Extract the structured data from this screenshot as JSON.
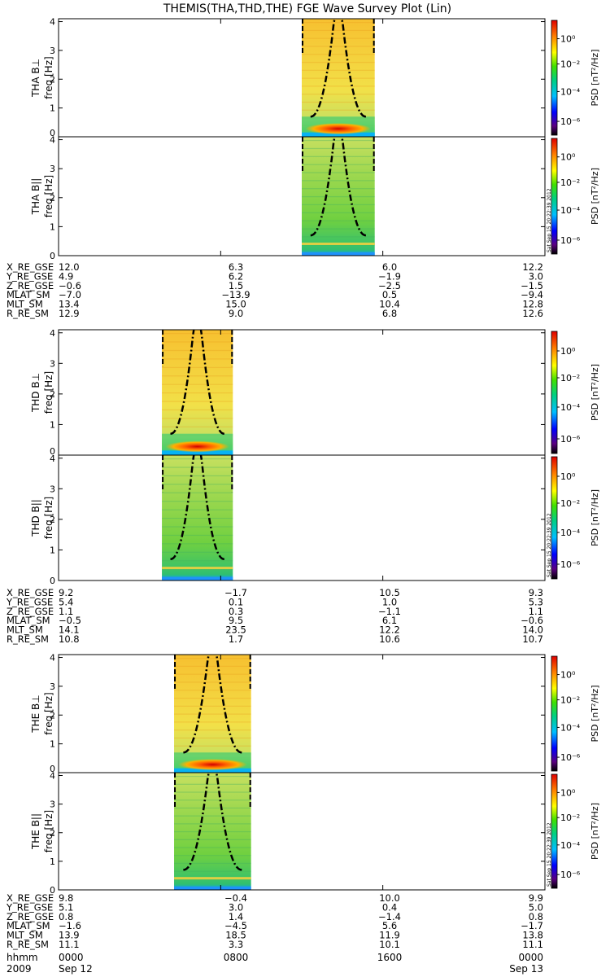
{
  "chart_data": {
    "type": "heatmap",
    "title": "THEMIS(THA,THD,THE) FGE Wave Survey Plot (Lin)",
    "colorbar": {
      "label": "PSD [nT²/Hz]",
      "ticks": [
        "10⁰",
        "10⁻²",
        "10⁻⁴",
        "10⁻⁶"
      ],
      "stamp": "Sat Sep 15 20:22:39 2012"
    },
    "y_ticks": [
      "0",
      "1",
      "2",
      "3",
      "4"
    ],
    "ylim": [
      0,
      4.1
    ],
    "x_labels": [
      "hhmm",
      "2009"
    ],
    "x_time_ticks": [
      "0000",
      "0800",
      "1600",
      "0000"
    ],
    "x_date_ticks": [
      "Sep 12",
      "",
      "",
      "Sep 13"
    ],
    "probes": [
      {
        "panels": [
          {
            "label": "THA B⊥",
            "ylabel": "freq [Hz]"
          },
          {
            "label": "THA B||",
            "ylabel": "freq [Hz]"
          }
        ],
        "data_window_hours": [
          12.0,
          15.6
        ],
        "ephemeris": [
          {
            "name": "X_RE_GSE",
            "values": [
              "12.0",
              "6.3",
              "6.0",
              "12.2"
            ]
          },
          {
            "name": "Y_RE_GSE",
            "values": [
              "4.9",
              "6.2",
              "-1.9",
              "3.0"
            ]
          },
          {
            "name": "Z_RE_GSE",
            "values": [
              "-0.6",
              "1.5",
              "-2.5",
              "-1.5"
            ]
          },
          {
            "name": "MLAT_SM",
            "values": [
              "-7.0",
              "-13.9",
              "0.5",
              "-9.4"
            ]
          },
          {
            "name": "MLT_SM",
            "values": [
              "13.4",
              "15.0",
              "10.4",
              "12.8"
            ]
          },
          {
            "name": "R_RE_SM",
            "values": [
              "12.9",
              "9.0",
              "6.8",
              "12.6"
            ]
          }
        ]
      },
      {
        "panels": [
          {
            "label": "THD B⊥",
            "ylabel": "freq [Hz]"
          },
          {
            "label": "THD B||",
            "ylabel": "freq [Hz]"
          }
        ],
        "data_window_hours": [
          5.1,
          8.6
        ],
        "ephemeris": [
          {
            "name": "X_RE_GSE",
            "values": [
              "9.2",
              "-1.7",
              "10.5",
              "9.3"
            ]
          },
          {
            "name": "Y_RE_GSE",
            "values": [
              "5.4",
              "0.1",
              "1.0",
              "5.3"
            ]
          },
          {
            "name": "Z_RE_GSE",
            "values": [
              "1.1",
              "0.3",
              "-1.1",
              "1.1"
            ]
          },
          {
            "name": "MLAT_SM",
            "values": [
              "-0.5",
              "9.5",
              "6.1",
              "-0.6"
            ]
          },
          {
            "name": "MLT_SM",
            "values": [
              "14.1",
              "23.5",
              "12.2",
              "14.0"
            ]
          },
          {
            "name": "R_RE_SM",
            "values": [
              "10.8",
              "1.7",
              "10.6",
              "10.7"
            ]
          }
        ]
      },
      {
        "panels": [
          {
            "label": "THE B⊥",
            "ylabel": "freq [Hz]"
          },
          {
            "label": "THE B||",
            "ylabel": "freq [Hz]"
          }
        ],
        "data_window_hours": [
          5.7,
          9.5
        ],
        "ephemeris": [
          {
            "name": "X_RE_GSE",
            "values": [
              "9.8",
              "-0.4",
              "10.0",
              "9.9"
            ]
          },
          {
            "name": "Y_RE_GSE",
            "values": [
              "5.1",
              "3.0",
              "0.4",
              "5.0"
            ]
          },
          {
            "name": "Z_RE_GSE",
            "values": [
              "0.8",
              "1.4",
              "-1.4",
              "0.8"
            ]
          },
          {
            "name": "MLAT_SM",
            "values": [
              "-1.6",
              "-4.5",
              "5.6",
              "-1.7"
            ]
          },
          {
            "name": "MLT_SM",
            "values": [
              "13.9",
              "18.5",
              "11.9",
              "13.8"
            ]
          },
          {
            "name": "R_RE_SM",
            "values": [
              "11.1",
              "3.3",
              "10.1",
              "11.1"
            ]
          }
        ]
      }
    ]
  }
}
